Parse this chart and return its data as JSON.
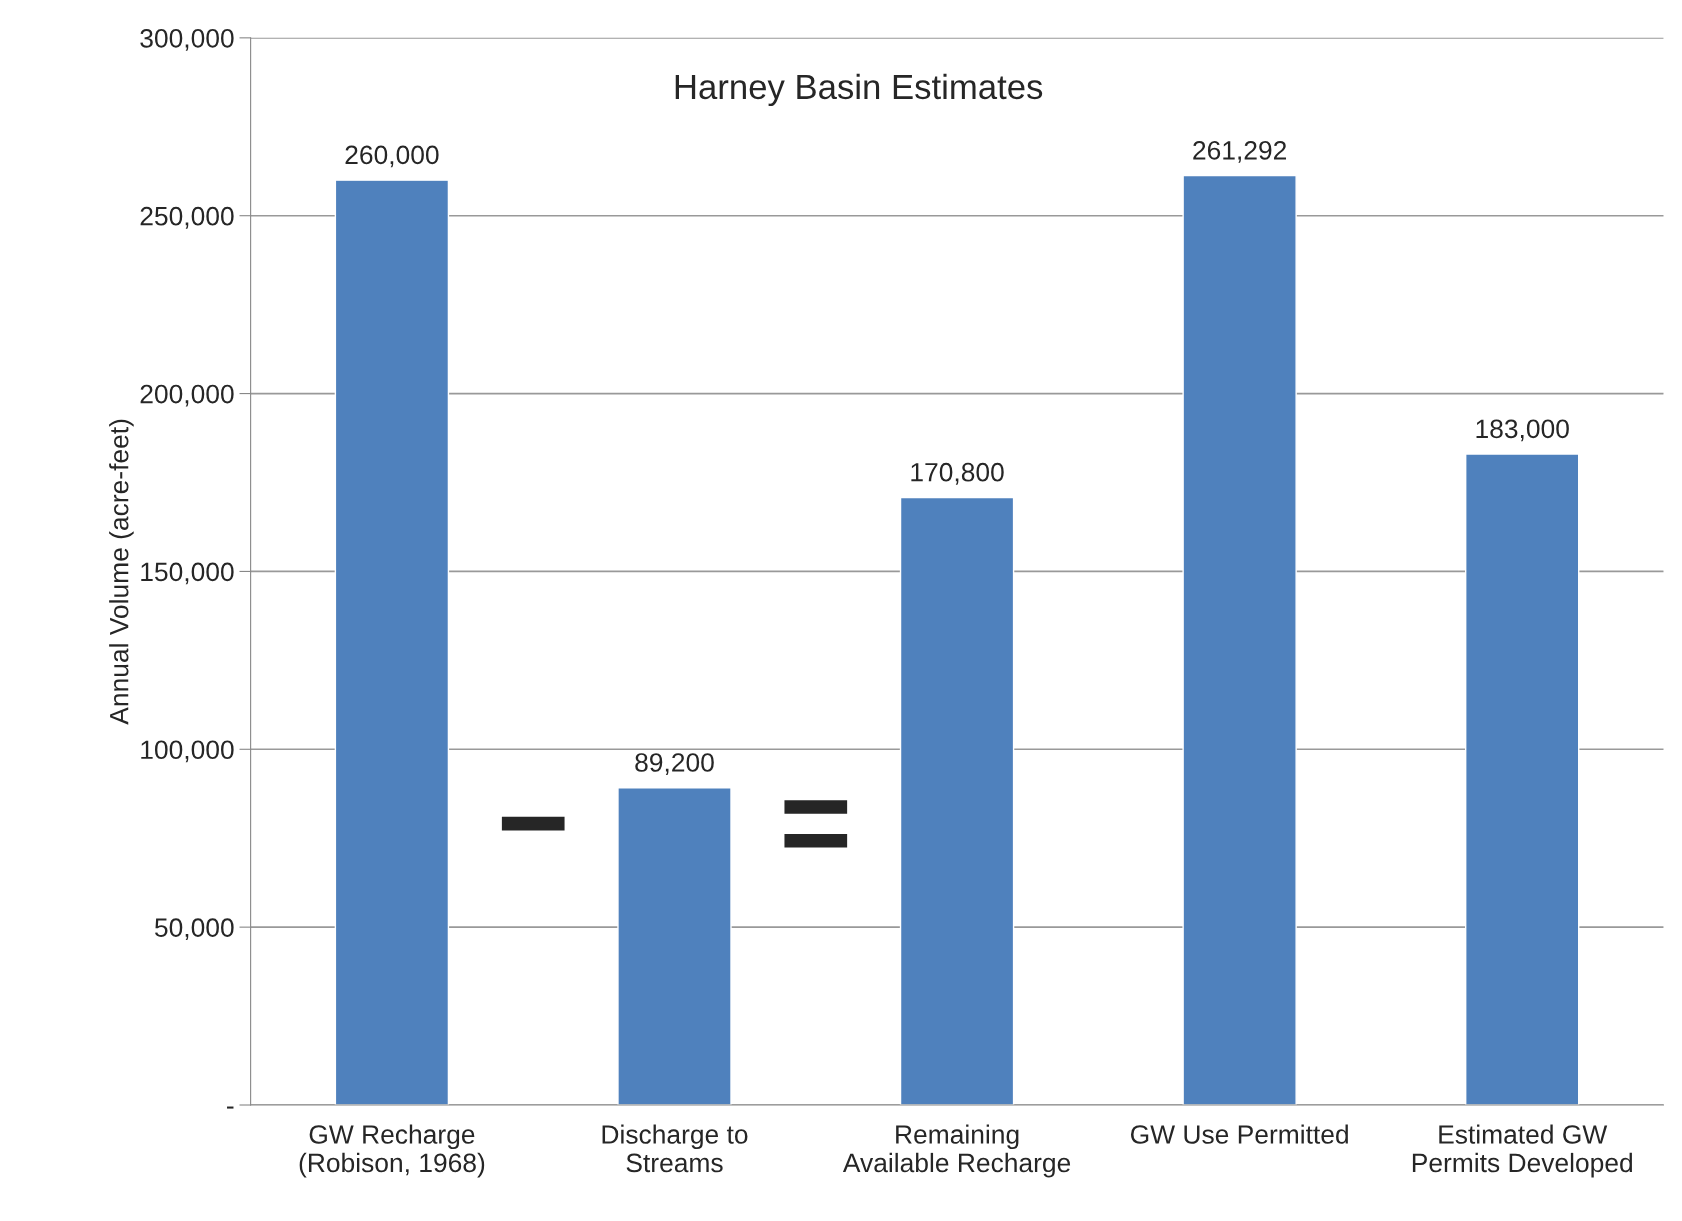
{
  "chart_data": {
    "type": "bar",
    "title": "Harney Basin Estimates",
    "ylabel": "Annual Volume (acre-feet)",
    "categories": [
      "GW Recharge\n(Robison, 1968)",
      "Discharge to\nStreams",
      "Remaining\nAvailable Recharge",
      "GW Use Permitted",
      "Estimated GW\nPermits Developed"
    ],
    "values": [
      260000,
      89200,
      170800,
      261292,
      183000
    ],
    "value_labels": [
      "260,000",
      "89,200",
      "170,800",
      "261,292",
      "183,000"
    ],
    "color": "#4f81bd",
    "ylim": [
      0,
      300000
    ],
    "yticks": [
      {
        "value": 0,
        "label": "-"
      },
      {
        "value": 50000,
        "label": "50,000"
      },
      {
        "value": 100000,
        "label": "100,000"
      },
      {
        "value": 150000,
        "label": "150,000"
      },
      {
        "value": 200000,
        "label": "200,000"
      },
      {
        "value": 250000,
        "label": "250,000"
      },
      {
        "value": 300000,
        "label": "300,000"
      }
    ],
    "grid": "y",
    "annotations": [
      "−",
      "="
    ]
  }
}
